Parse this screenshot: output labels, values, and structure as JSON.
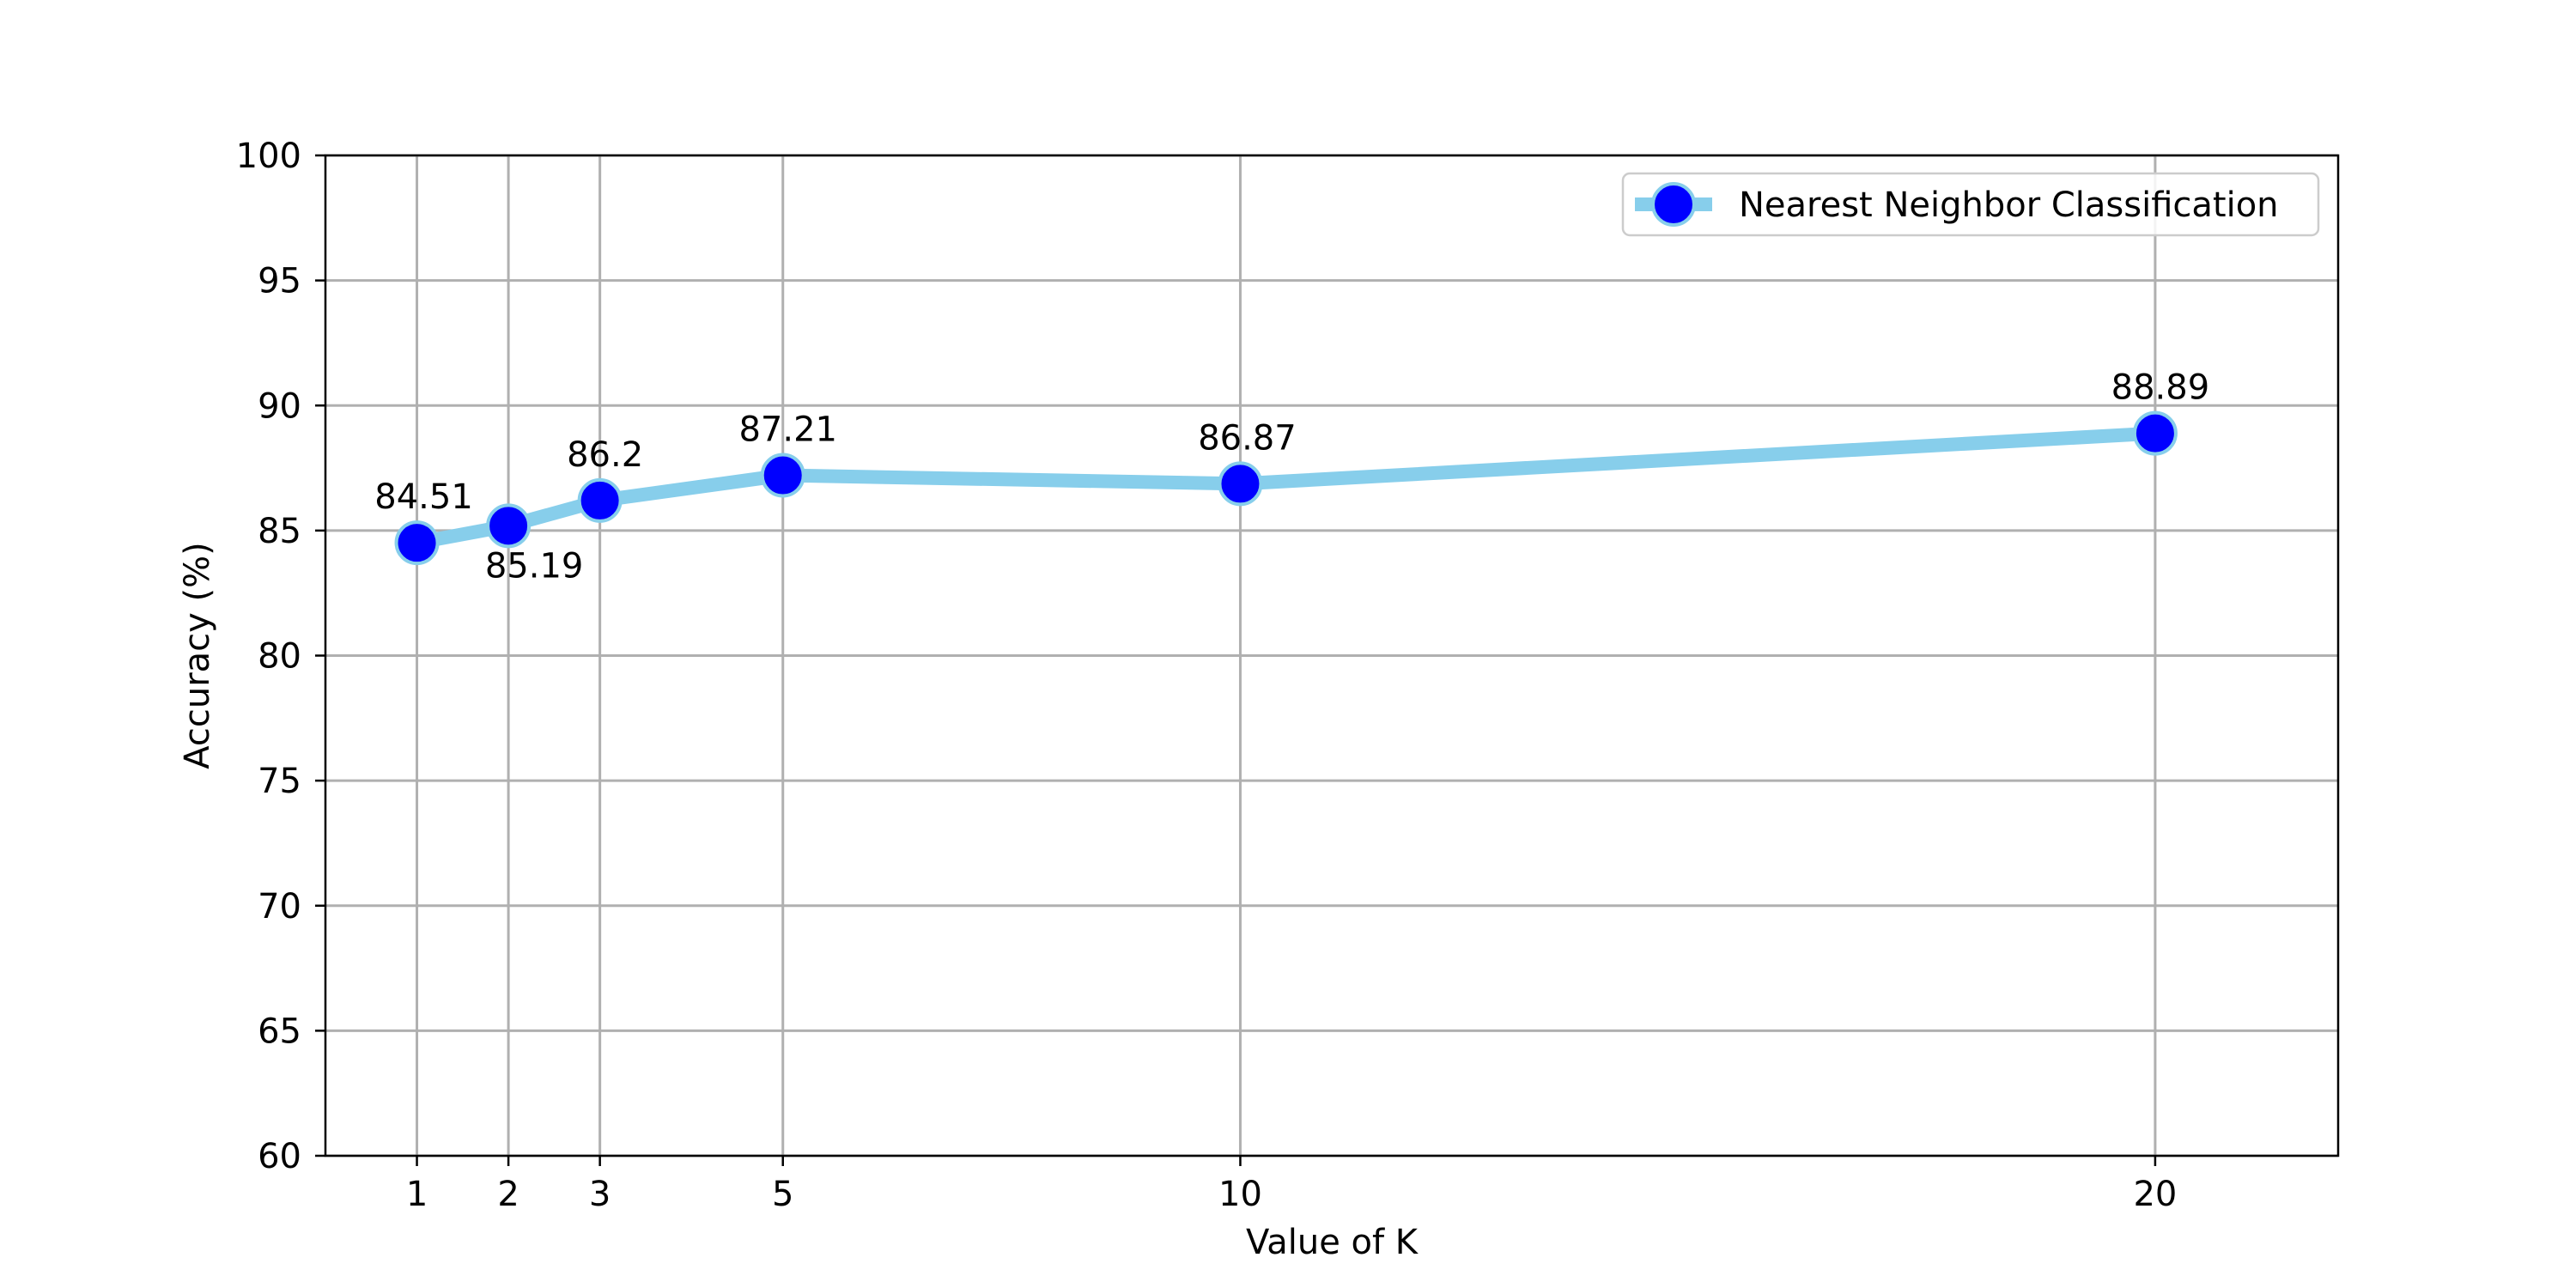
{
  "chart_data": {
    "type": "line",
    "title": "",
    "xlabel": "Value of K",
    "ylabel": "Accuracy (%)",
    "x": [
      1,
      2,
      3,
      5,
      10,
      20
    ],
    "x_ticks": [
      "1",
      "2",
      "3",
      "5",
      "10",
      "20"
    ],
    "xlim": [
      0,
      22
    ],
    "ylim": [
      60,
      100
    ],
    "y_ticks": [
      60,
      65,
      70,
      75,
      80,
      85,
      90,
      95,
      100
    ],
    "grid": true,
    "legend_position": "top-right",
    "series": [
      {
        "name": "Nearest Neighbor Classification",
        "values": [
          84.51,
          85.19,
          86.2,
          87.21,
          86.87,
          88.89
        ],
        "data_labels": [
          "84.51",
          "85.19",
          "86.2",
          "87.21",
          "86.87",
          "88.89"
        ],
        "line_color": "#87ceeb",
        "marker_color": "#0000ff",
        "marker_edge_color": "#87ceeb"
      }
    ]
  }
}
